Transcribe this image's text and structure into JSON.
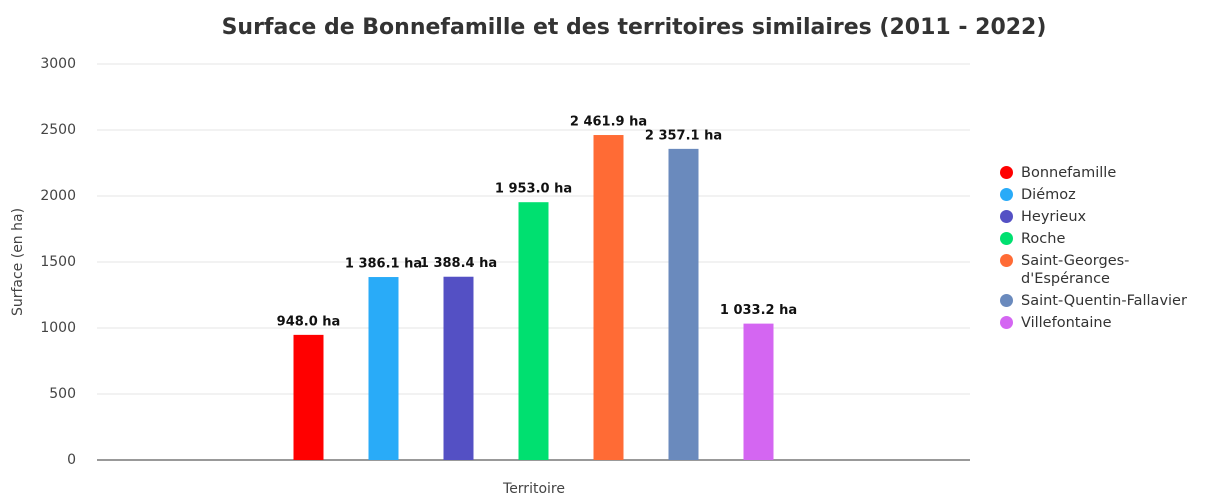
{
  "chart_data": {
    "type": "bar",
    "title": "Surface de Bonnefamille et des territoires similaires (2011 - 2022)",
    "xlabel": "Territoire",
    "ylabel": "Surface (en ha)",
    "ylim": [
      0,
      3000
    ],
    "yticks": [
      0,
      500,
      1000,
      1500,
      2000,
      2500,
      3000
    ],
    "grid": true,
    "legend": "right",
    "series": [
      {
        "name": "Bonnefamille",
        "color": "#ff0000",
        "values": [
          948.0
        ],
        "value_labels": [
          "948.0 ha"
        ]
      },
      {
        "name": "Diémoz",
        "color": "#29abf8",
        "values": [
          1386.1
        ],
        "value_labels": [
          "1 386.1 ha"
        ]
      },
      {
        "name": "Heyrieux",
        "color": "#5450c4",
        "values": [
          1388.4
        ],
        "value_labels": [
          "1 388.4 ha"
        ]
      },
      {
        "name": "Roche",
        "color": "#00e070",
        "values": [
          1953.0
        ],
        "value_labels": [
          "1 953.0 ha"
        ]
      },
      {
        "name": "Saint-Georges-d'Espérance",
        "color": "#ff6b35",
        "values": [
          2461.9
        ],
        "value_labels": [
          "2 461.9 ha"
        ]
      },
      {
        "name": "Saint-Quentin-Fallavier",
        "color": "#6a8abd",
        "values": [
          2357.1
        ],
        "value_labels": [
          "2 357.1 ha"
        ]
      },
      {
        "name": "Villefontaine",
        "color": "#d466f2",
        "values": [
          1033.2
        ],
        "value_labels": [
          "1 033.2 ha"
        ]
      }
    ]
  }
}
